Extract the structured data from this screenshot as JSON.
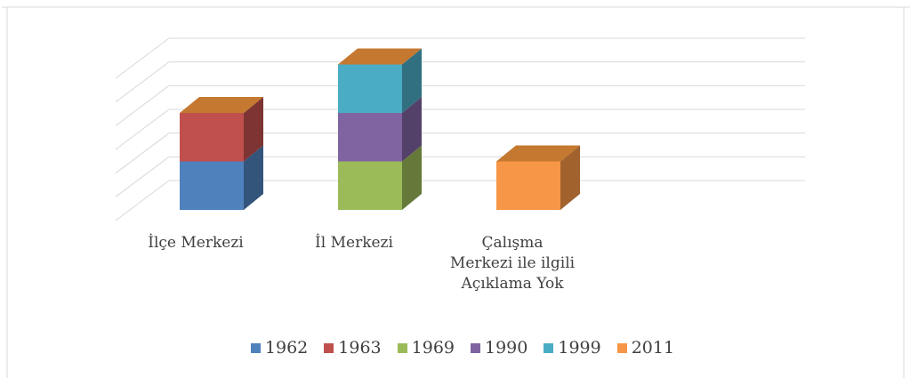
{
  "chart_data": {
    "type": "bar3d_stacked",
    "categories": [
      "İlçe Merkezi",
      "İl Merkezi",
      "Çalışma\nMerkezi ile ilgili\nAçıklama Yok"
    ],
    "series": [
      {
        "name": "1962",
        "color": "#4f81bd",
        "values": [
          1,
          null,
          null
        ]
      },
      {
        "name": "1963",
        "color": "#c0504d",
        "values": [
          1,
          null,
          null
        ]
      },
      {
        "name": "1969",
        "color": "#9bbb59",
        "values": [
          null,
          1,
          null
        ]
      },
      {
        "name": "1990",
        "color": "#8064a2",
        "values": [
          null,
          1,
          null
        ]
      },
      {
        "name": "1999",
        "color": "#4bacc6",
        "values": [
          null,
          1,
          null
        ]
      },
      {
        "name": "2011",
        "color": "#f79646",
        "values": [
          null,
          null,
          1
        ]
      }
    ],
    "ylim": [
      0,
      3
    ],
    "yticks": [
      0,
      0.5,
      1,
      1.5,
      2,
      2.5,
      3
    ],
    "grid": true,
    "legend": "bottom"
  }
}
